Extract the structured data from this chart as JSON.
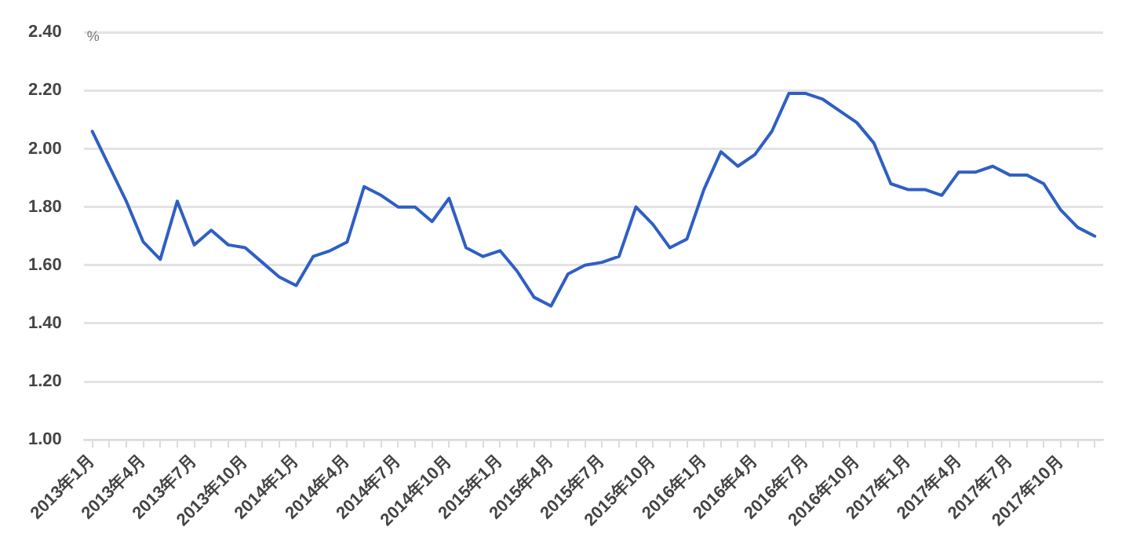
{
  "chart_data": {
    "type": "line",
    "ylabel": "%",
    "categories": [
      "2013年1月",
      null,
      null,
      "2013年4月",
      null,
      null,
      "2013年7月",
      null,
      null,
      "2013年10月",
      null,
      null,
      "2014年1月",
      null,
      null,
      "2014年4月",
      null,
      null,
      "2014年7月",
      null,
      null,
      "2014年10月",
      null,
      null,
      "2015年1月",
      null,
      null,
      "2015年4月",
      null,
      null,
      "2015年7月",
      null,
      null,
      "2015年10月",
      null,
      null,
      "2016年1月",
      null,
      null,
      "2016年4月",
      null,
      null,
      "2016年7月",
      null,
      null,
      "2016年10月",
      null,
      null,
      "2017年1月",
      null,
      null,
      "2017年4月",
      null,
      null,
      "2017年7月",
      null,
      null,
      "2017年10月",
      null,
      null
    ],
    "series": [
      {
        "color": "#2f5fc4",
        "values": [
          2.06,
          1.94,
          1.82,
          1.68,
          1.62,
          1.82,
          1.67,
          1.72,
          1.67,
          1.66,
          1.61,
          1.56,
          1.53,
          1.63,
          1.65,
          1.68,
          1.87,
          1.84,
          1.8,
          1.8,
          1.75,
          1.83,
          1.66,
          1.63,
          1.65,
          1.58,
          1.49,
          1.46,
          1.57,
          1.6,
          1.61,
          1.63,
          1.8,
          1.74,
          1.66,
          1.69,
          1.86,
          1.99,
          1.94,
          1.98,
          2.06,
          2.19,
          2.19,
          2.17,
          2.13,
          2.09,
          2.02,
          1.88,
          1.86,
          1.86,
          1.84,
          1.92,
          1.92,
          1.94,
          1.91,
          1.91,
          1.88,
          1.79,
          1.73,
          1.7
        ]
      }
    ],
    "ylim": [
      1.0,
      2.4
    ],
    "yticks": [
      {
        "value": 1.0,
        "label": "1.00"
      },
      {
        "value": 1.2,
        "label": "1.20"
      },
      {
        "value": 1.4,
        "label": "1.40"
      },
      {
        "value": 1.6,
        "label": "1.60"
      },
      {
        "value": 1.8,
        "label": "1.80"
      },
      {
        "value": 2.0,
        "label": "2.00"
      },
      {
        "value": 2.2,
        "label": "2.20"
      },
      {
        "value": 2.4,
        "label": "2.40"
      }
    ],
    "grid": "y",
    "legend": false,
    "marker": "none",
    "line_style": "solid"
  }
}
